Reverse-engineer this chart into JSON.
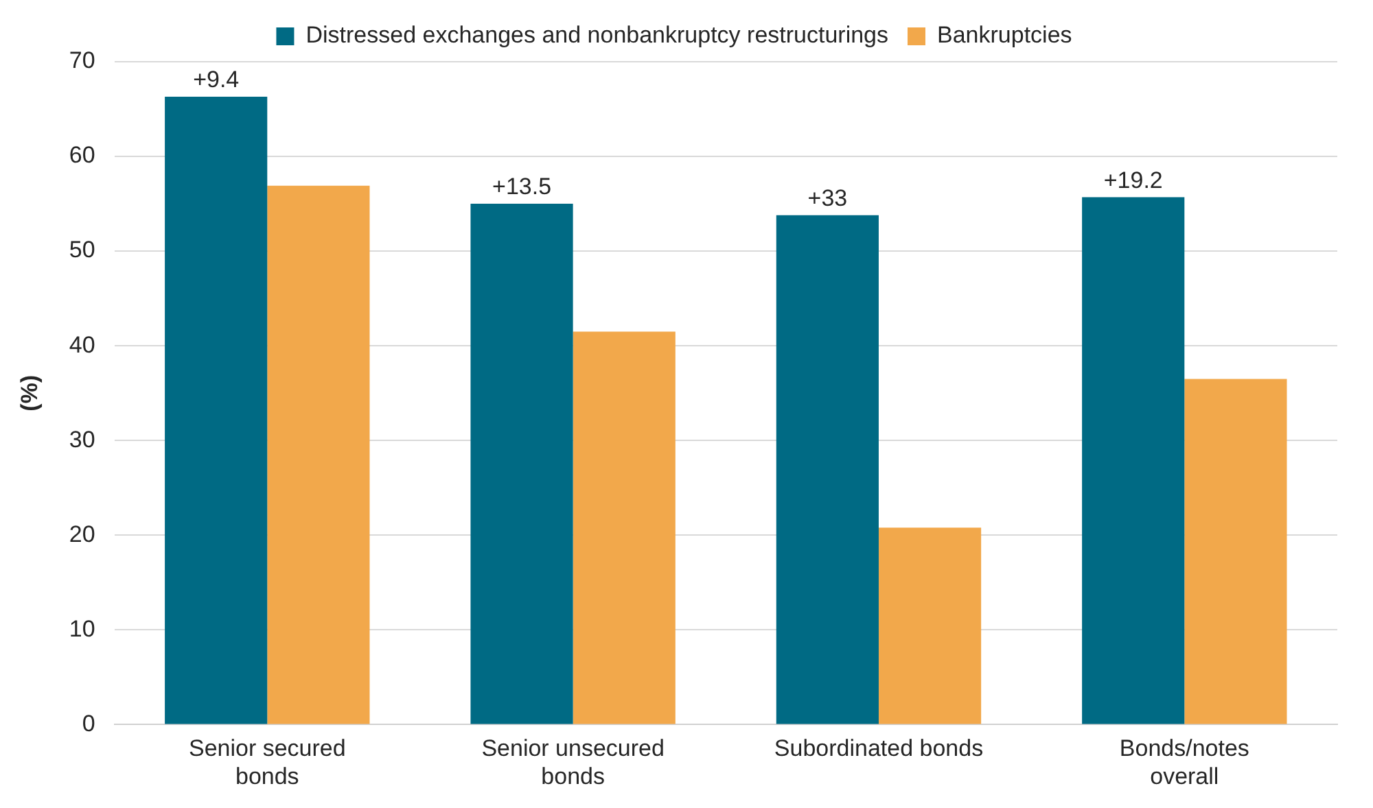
{
  "chart_data": {
    "type": "bar",
    "ylabel": "(%)",
    "categories": [
      "Senior secured bonds",
      "Senior unsecured bonds",
      "Subordinated bonds",
      "Bonds/notes overall"
    ],
    "series": [
      {
        "name": "Distressed exchanges and nonbankruptcy restructurings",
        "color": "#006a84",
        "values": [
          66.3,
          55.0,
          53.8,
          55.7
        ]
      },
      {
        "name": "Bankruptcies",
        "color": "#f2a84b",
        "values": [
          56.9,
          41.5,
          20.8,
          36.5
        ]
      }
    ],
    "ylim": [
      0,
      70
    ],
    "yticks": [
      0,
      10,
      20,
      30,
      40,
      50,
      60,
      70
    ],
    "grid": "y",
    "legend": "top",
    "annotations": [
      {
        "text": "+9.4",
        "x": "Senior secured bonds",
        "y": 66.3
      },
      {
        "text": "+13.5",
        "x": "Senior unsecured bonds",
        "y": 55.0
      },
      {
        "text": "+33",
        "x": "Subordinated bonds",
        "y": 53.8
      },
      {
        "text": "+19.2",
        "x": "Bonds/notes overall",
        "y": 55.7
      }
    ]
  }
}
